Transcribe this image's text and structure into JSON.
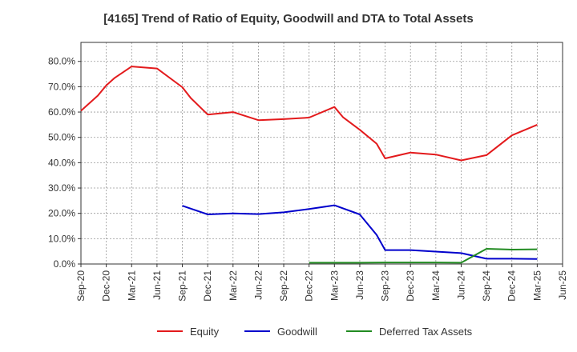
{
  "chart_data": {
    "type": "line",
    "title": "[4165]  Trend of Ratio of Equity, Goodwill and DTA to Total Assets",
    "xlabel": "",
    "ylabel": "",
    "x_ticks": [
      "Sep-20",
      "Dec-20",
      "Mar-21",
      "Jun-21",
      "Sep-21",
      "Dec-21",
      "Mar-22",
      "Jun-22",
      "Sep-22",
      "Dec-22",
      "Mar-23",
      "Jun-23",
      "Sep-23",
      "Dec-23",
      "Mar-24",
      "Jun-24",
      "Sep-24",
      "Dec-24",
      "Mar-25",
      "Jun-25"
    ],
    "y_ticks": [
      "0.0%",
      "10.0%",
      "20.0%",
      "30.0%",
      "40.0%",
      "50.0%",
      "60.0%",
      "70.0%",
      "80.0%"
    ],
    "ylim": [
      0,
      0.8
    ],
    "y_max_plot": 0.875,
    "grid": true,
    "legend_position": "bottom",
    "series": [
      {
        "name": "Equity",
        "color": "#e31a1c",
        "points": [
          [
            "Sep-20",
            0.605
          ],
          [
            "Nov-20",
            0.665
          ],
          [
            "Dec-20",
            0.705
          ],
          [
            "Jan-21",
            0.735
          ],
          [
            "Mar-21",
            0.78
          ],
          [
            "Jun-21",
            0.772
          ],
          [
            "Sep-21",
            0.698
          ],
          [
            "Oct-21",
            0.655
          ],
          [
            "Dec-21",
            0.59
          ],
          [
            "Mar-22",
            0.6
          ],
          [
            "Jun-22",
            0.568
          ],
          [
            "Sep-22",
            0.572
          ],
          [
            "Dec-22",
            0.578
          ],
          [
            "Mar-23",
            0.62
          ],
          [
            "Apr-23",
            0.58
          ],
          [
            "Jun-23",
            0.53
          ],
          [
            "Aug-23",
            0.475
          ],
          [
            "Sep-23",
            0.417
          ],
          [
            "Dec-23",
            0.44
          ],
          [
            "Mar-24",
            0.432
          ],
          [
            "Jun-24",
            0.409
          ],
          [
            "Sep-24",
            0.43
          ],
          [
            "Dec-24",
            0.508
          ],
          [
            "Mar-25",
            0.55
          ]
        ]
      },
      {
        "name": "Goodwill",
        "color": "#0000cc",
        "points": [
          [
            "Sep-21",
            0.23
          ],
          [
            "Dec-21",
            0.196
          ],
          [
            "Mar-22",
            0.2
          ],
          [
            "Jun-22",
            0.197
          ],
          [
            "Sep-22",
            0.204
          ],
          [
            "Dec-22",
            0.217
          ],
          [
            "Mar-23",
            0.232
          ],
          [
            "Jun-23",
            0.196
          ],
          [
            "Aug-23",
            0.115
          ],
          [
            "Sep-23",
            0.055
          ],
          [
            "Dec-23",
            0.055
          ],
          [
            "Mar-24",
            0.049
          ],
          [
            "Jun-24",
            0.043
          ],
          [
            "Sep-24",
            0.021
          ],
          [
            "Dec-24",
            0.021
          ],
          [
            "Mar-25",
            0.02
          ]
        ]
      },
      {
        "name": "Deferred Tax Assets",
        "color": "#228b22",
        "points": [
          [
            "Dec-22",
            0.005
          ],
          [
            "Mar-23",
            0.005
          ],
          [
            "Jun-23",
            0.005
          ],
          [
            "Sep-23",
            0.006
          ],
          [
            "Dec-23",
            0.006
          ],
          [
            "Mar-24",
            0.006
          ],
          [
            "Jun-24",
            0.005
          ],
          [
            "Sep-24",
            0.06
          ],
          [
            "Dec-24",
            0.057
          ],
          [
            "Mar-25",
            0.058
          ]
        ]
      }
    ]
  }
}
